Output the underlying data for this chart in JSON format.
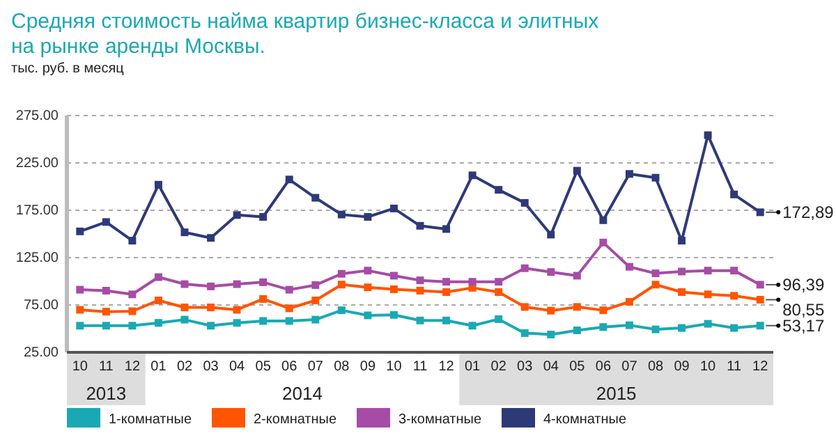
{
  "chart_data": {
    "type": "line",
    "title": "Средняя стоимость найма квартир бизнес-класса и элитных на рынке аренды Москвы.",
    "ylabel": "тыс. руб. в месяц",
    "categories": [
      "10",
      "11",
      "12",
      "01",
      "02",
      "03",
      "04",
      "05",
      "06",
      "07",
      "08",
      "09",
      "10",
      "11",
      "12",
      "01",
      "02",
      "03",
      "04",
      "05",
      "06",
      "07",
      "08",
      "09",
      "10",
      "11",
      "12"
    ],
    "annotations": [
      "2013",
      "2014",
      "2015"
    ],
    "ylim": [
      25,
      275
    ],
    "yticks": [
      {
        "value": 25,
        "label": "25.00"
      },
      {
        "value": 75,
        "label": "75.00"
      },
      {
        "value": 125,
        "label": "125.00"
      },
      {
        "value": 175,
        "label": "175.00"
      },
      {
        "value": 225,
        "label": "225.00"
      },
      {
        "value": 275,
        "label": "275.00"
      }
    ],
    "grid": "y",
    "legend": "bottom",
    "marker": "square",
    "line_style": "solid",
    "series": [
      {
        "name": "1-комнатные",
        "color": "#1aa9b4",
        "values": [
          53.1,
          53.1,
          53.1,
          56.1,
          59.5,
          53.1,
          56.1,
          58.1,
          58.1,
          59.5,
          69.4,
          64,
          64.5,
          58.6,
          58.6,
          53.1,
          60,
          45.3,
          43.8,
          48.2,
          51.7,
          53.6,
          49.2,
          50.7,
          55.1,
          50.7,
          53.17
        ],
        "value_labels": [
          null,
          null,
          null,
          null,
          null,
          null,
          null,
          null,
          null,
          null,
          null,
          null,
          null,
          null,
          null,
          null,
          null,
          null,
          null,
          null,
          null,
          null,
          null,
          null,
          null,
          null,
          "53,17"
        ]
      },
      {
        "name": "2-комнатные",
        "color": "#ff5500",
        "values": [
          69.9,
          67.9,
          68.4,
          79.8,
          72.4,
          72.4,
          69.9,
          81.3,
          71.4,
          79.8,
          96.5,
          93.6,
          91.6,
          90.1,
          88.6,
          93.1,
          88.6,
          72.9,
          69,
          72.9,
          69.4,
          78.3,
          96.5,
          88.6,
          86.2,
          84.7,
          80.55
        ],
        "value_labels": [
          null,
          null,
          null,
          null,
          null,
          null,
          null,
          null,
          null,
          null,
          null,
          null,
          null,
          null,
          null,
          null,
          null,
          null,
          null,
          null,
          null,
          null,
          null,
          null,
          null,
          null,
          "80,55"
        ]
      },
      {
        "name": "3-комнатные",
        "color": "#a64ca6",
        "values": [
          91.1,
          90.1,
          86.2,
          104.4,
          97,
          94.6,
          97,
          99,
          91.1,
          96,
          107.9,
          111.3,
          105.9,
          101,
          99.5,
          99.5,
          99.5,
          113.8,
          109.8,
          105.9,
          140.9,
          115.3,
          108.4,
          110.3,
          111.3,
          111.3,
          96.39
        ],
        "value_labels": [
          null,
          null,
          null,
          null,
          null,
          null,
          null,
          null,
          null,
          null,
          null,
          null,
          null,
          null,
          null,
          null,
          null,
          null,
          null,
          null,
          null,
          null,
          null,
          null,
          null,
          null,
          "96,39"
        ]
      },
      {
        "name": "4-комнатные",
        "color": "#2e3a78",
        "values": [
          152.7,
          162.6,
          142.9,
          202,
          151.7,
          145.8,
          170,
          168,
          207.5,
          188.2,
          170.5,
          168,
          176.9,
          158.6,
          155.2,
          211.9,
          196.6,
          182.8,
          149.3,
          216.8,
          164.5,
          213.4,
          209.4,
          142.9,
          254.3,
          191.7,
          172.89
        ],
        "value_labels": [
          null,
          null,
          null,
          null,
          null,
          null,
          null,
          null,
          null,
          null,
          null,
          null,
          null,
          null,
          null,
          null,
          null,
          null,
          null,
          null,
          null,
          null,
          null,
          null,
          null,
          null,
          "172,89"
        ]
      }
    ]
  }
}
